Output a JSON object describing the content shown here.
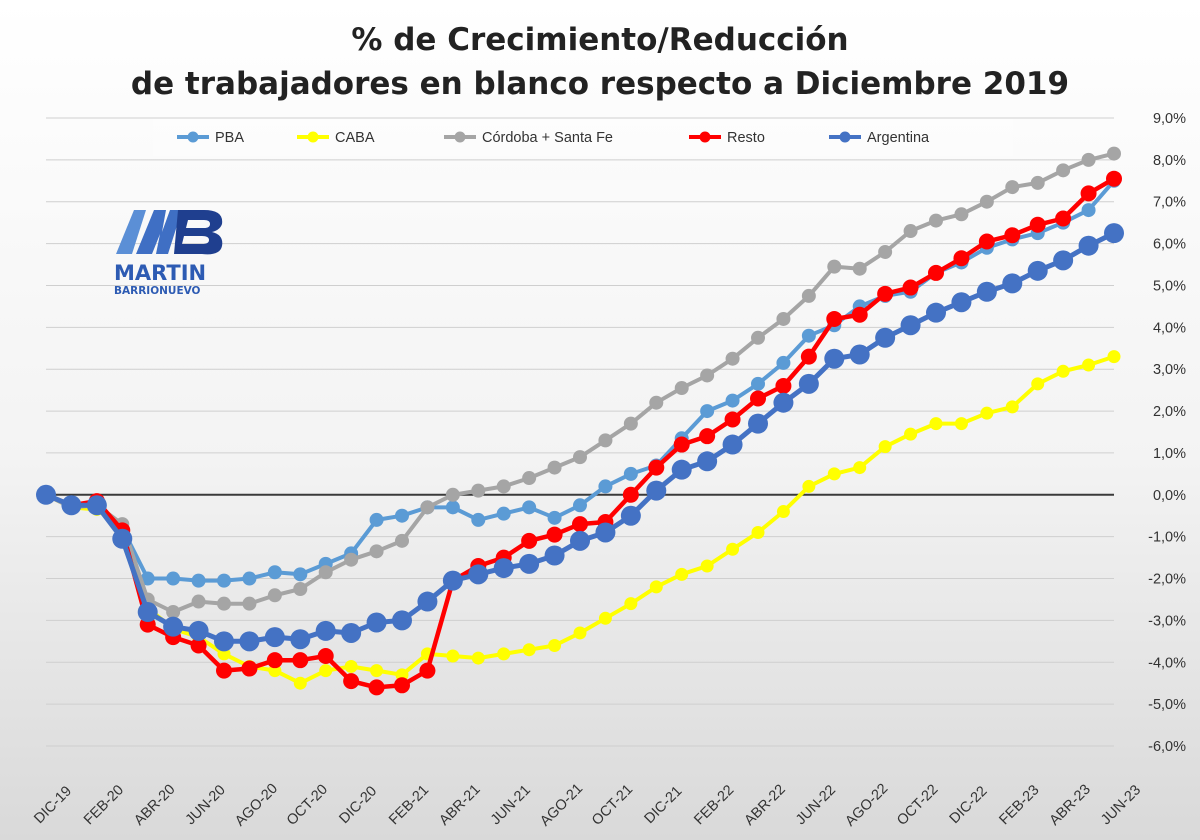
{
  "chart_data": {
    "type": "line",
    "title": "% de Crecimiento/Reducción",
    "subtitle": "de trabajadores en blanco respecto a Diciembre 2019",
    "xlabel": "",
    "ylabel": "",
    "ylim": [
      -6,
      9
    ],
    "y_ticks": [
      -6,
      -5,
      -4,
      -3,
      -2,
      -1,
      0,
      1,
      2,
      3,
      4,
      5,
      6,
      7,
      8,
      9
    ],
    "y_tick_labels": [
      "-6,0%",
      "-5,0%",
      "-4,0%",
      "-3,0%",
      "-2,0%",
      "-1,0%",
      "0,0%",
      "1,0%",
      "2,0%",
      "3,0%",
      "4,0%",
      "5,0%",
      "6,0%",
      "7,0%",
      "8,0%",
      "9,0%"
    ],
    "x_tick_labels": [
      "DIC-19",
      "FEB-20",
      "ABR-20",
      "JUN-20",
      "AGO-20",
      "OCT-20",
      "DIC-20",
      "FEB-21",
      "ABR-21",
      "JUN-21",
      "AGO-21",
      "OCT-21",
      "DIC-21",
      "FEB-22",
      "ABR-22",
      "JUN-22",
      "AGO-22",
      "OCT-22",
      "DIC-22",
      "FEB-23",
      "ABR-23",
      "JUN-23"
    ],
    "legend_position": "top",
    "grid": true,
    "x": [
      "DIC-19",
      "ENE-20",
      "FEB-20",
      "MAR-20",
      "ABR-20",
      "MAY-20",
      "JUN-20",
      "JUL-20",
      "AGO-20",
      "SEP-20",
      "OCT-20",
      "NOV-20",
      "DIC-20",
      "ENE-21",
      "FEB-21",
      "MAR-21",
      "ABR-21",
      "MAY-21",
      "JUN-21",
      "JUL-21",
      "AGO-21",
      "SEP-21",
      "OCT-21",
      "NOV-21",
      "DIC-21",
      "ENE-22",
      "FEB-22",
      "MAR-22",
      "ABR-22",
      "MAY-22",
      "JUN-22",
      "JUL-22",
      "AGO-22",
      "SEP-22",
      "OCT-22",
      "NOV-22",
      "DIC-22",
      "ENE-23",
      "FEB-23",
      "MAR-23",
      "ABR-23",
      "MAY-23",
      "JUN-23"
    ],
    "series": [
      {
        "name": "PBA",
        "color": "#5b9bd5",
        "values": [
          0.0,
          -0.3,
          -0.3,
          -0.8,
          -2.0,
          -2.0,
          -2.05,
          -2.05,
          -2.0,
          -1.85,
          -1.9,
          -1.65,
          -1.4,
          -0.6,
          -0.5,
          -0.3,
          -0.3,
          -0.6,
          -0.45,
          -0.3,
          -0.55,
          -0.25,
          0.2,
          0.5,
          0.7,
          1.35,
          2.0,
          2.25,
          2.65,
          3.15,
          3.8,
          4.05,
          4.5,
          4.75,
          4.85,
          5.3,
          5.55,
          5.9,
          6.1,
          6.25,
          6.5,
          6.8,
          7.5
        ]
      },
      {
        "name": "CABA",
        "color": "#ffff00",
        "values": [
          0.0,
          -0.3,
          -0.35,
          -0.8,
          -2.7,
          -3.2,
          -3.4,
          -3.8,
          -4.1,
          -4.2,
          -4.5,
          -4.2,
          -4.1,
          -4.2,
          -4.3,
          -3.8,
          -3.85,
          -3.9,
          -3.8,
          -3.7,
          -3.6,
          -3.3,
          -2.95,
          -2.6,
          -2.2,
          -1.9,
          -1.7,
          -1.3,
          -0.9,
          -0.4,
          0.2,
          0.5,
          0.65,
          1.15,
          1.45,
          1.7,
          1.7,
          1.95,
          2.1,
          2.65,
          2.95,
          3.1,
          3.3
        ]
      },
      {
        "name": "Córdoba + Santa Fe",
        "color": "#a5a5a5",
        "values": [
          0.0,
          -0.3,
          -0.25,
          -0.7,
          -2.5,
          -2.8,
          -2.55,
          -2.6,
          -2.6,
          -2.4,
          -2.25,
          -1.85,
          -1.55,
          -1.35,
          -1.1,
          -0.3,
          0.0,
          0.1,
          0.2,
          0.4,
          0.65,
          0.9,
          1.3,
          1.7,
          2.2,
          2.55,
          2.85,
          3.25,
          3.75,
          4.2,
          4.75,
          5.45,
          5.4,
          5.8,
          6.3,
          6.55,
          6.7,
          7.0,
          7.35,
          7.45,
          7.75,
          8.0,
          8.15
        ]
      },
      {
        "name": "Resto",
        "color": "#ff0000",
        "values": [
          0.0,
          -0.25,
          -0.15,
          -0.85,
          -3.1,
          -3.4,
          -3.6,
          -4.2,
          -4.15,
          -3.95,
          -3.95,
          -3.85,
          -4.45,
          -4.6,
          -4.55,
          -4.2,
          -2.05,
          -1.7,
          -1.5,
          -1.1,
          -0.95,
          -0.7,
          -0.65,
          0.0,
          0.65,
          1.2,
          1.4,
          1.8,
          2.3,
          2.6,
          3.3,
          4.2,
          4.3,
          4.8,
          4.95,
          5.3,
          5.65,
          6.05,
          6.2,
          6.45,
          6.6,
          7.2,
          7.55
        ]
      },
      {
        "name": "Argentina",
        "color": "#4472c4",
        "values": [
          0.0,
          -0.25,
          -0.25,
          -1.05,
          -2.8,
          -3.15,
          -3.25,
          -3.5,
          -3.5,
          -3.4,
          -3.45,
          -3.25,
          -3.3,
          -3.05,
          -3.0,
          -2.55,
          -2.05,
          -1.9,
          -1.75,
          -1.65,
          -1.45,
          -1.1,
          -0.9,
          -0.5,
          0.1,
          0.6,
          0.8,
          1.2,
          1.7,
          2.2,
          2.65,
          3.25,
          3.35,
          3.75,
          4.05,
          4.35,
          4.6,
          4.85,
          5.05,
          5.35,
          5.6,
          5.95,
          6.25
        ]
      }
    ]
  },
  "branding": {
    "logo_name": "MARTIN",
    "logo_surname": "BARRIONUEVO"
  }
}
